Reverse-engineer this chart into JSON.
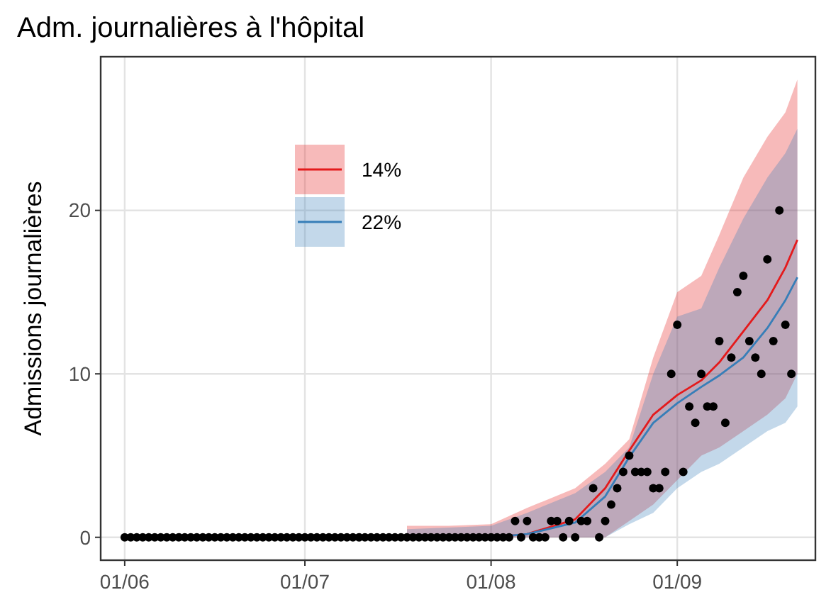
{
  "chart_data": {
    "type": "line",
    "title": "Adm. journalières à l'hôpital",
    "ylabel": "Admissions journalières",
    "xlim": [
      "--05-28",
      "--09-24"
    ],
    "ylim": [
      -1.4,
      29.4
    ],
    "yticks": [
      0,
      10,
      20
    ],
    "xticks": [
      {
        "value": "--06-01",
        "label": "01/06"
      },
      {
        "value": "--07-01",
        "label": "01/07"
      },
      {
        "value": "--08-01",
        "label": "01/08"
      },
      {
        "value": "--09-01",
        "label": "01/09"
      }
    ],
    "grid": true,
    "legend": "top left",
    "series": [
      {
        "name": "14%",
        "color": "#e41a1c",
        "x": [
          "--07-18",
          "--07-25",
          "--08-01",
          "--08-07",
          "--08-15",
          "--08-20",
          "--08-24",
          "--08-28",
          "--09-01",
          "--09-05",
          "--09-08",
          "--09-12",
          "--09-16",
          "--09-19",
          "--09-21"
        ],
        "values": [
          null,
          null,
          0,
          0.2,
          1.1,
          3,
          5.3,
          7.5,
          8.7,
          9.6,
          10.7,
          12.6,
          14.5,
          16.5,
          18.2
        ],
        "upper": [
          0.7,
          0.7,
          0.8,
          1.8,
          3,
          4.5,
          6,
          11,
          15,
          16,
          18.5,
          22,
          24.5,
          26,
          28
        ],
        "lower": [
          0,
          0,
          0,
          0,
          0,
          0,
          1,
          2,
          3.5,
          5,
          5.5,
          6.5,
          7.5,
          8.5,
          10
        ]
      },
      {
        "name": "22%",
        "color": "#377eb8",
        "x": [
          "--07-18",
          "--07-25",
          "--08-01",
          "--08-07",
          "--08-15",
          "--08-20",
          "--08-24",
          "--08-28",
          "--09-01",
          "--09-05",
          "--09-08",
          "--09-12",
          "--09-16",
          "--09-19",
          "--09-21"
        ],
        "values": [
          null,
          null,
          0,
          0.2,
          0.9,
          2.5,
          4.9,
          7,
          8.2,
          9.2,
          9.9,
          11,
          12.8,
          14.5,
          15.9
        ],
        "upper": [
          0.5,
          0.6,
          0.7,
          1.5,
          2.7,
          4,
          5.5,
          10,
          13.5,
          14,
          16.5,
          19.5,
          22,
          23.5,
          25
        ],
        "lower": [
          0,
          0,
          0,
          0,
          0,
          0,
          0.8,
          1.5,
          3,
          4,
          4.5,
          5.5,
          6.5,
          7,
          8
        ]
      },
      {
        "type": "scatter",
        "color": "#000000",
        "marker": "circle",
        "x": [
          "--06-01",
          "--06-02",
          "--06-03",
          "--06-04",
          "--06-05",
          "--06-06",
          "--06-07",
          "--06-08",
          "--06-09",
          "--06-10",
          "--06-11",
          "--06-12",
          "--06-13",
          "--06-14",
          "--06-15",
          "--06-16",
          "--06-17",
          "--06-18",
          "--06-19",
          "--06-20",
          "--06-21",
          "--06-22",
          "--06-23",
          "--06-24",
          "--06-25",
          "--06-26",
          "--06-27",
          "--06-28",
          "--06-29",
          "--06-30",
          "--07-01",
          "--07-02",
          "--07-03",
          "--07-04",
          "--07-05",
          "--07-06",
          "--07-07",
          "--07-08",
          "--07-09",
          "--07-10",
          "--07-11",
          "--07-12",
          "--07-13",
          "--07-14",
          "--07-15",
          "--07-16",
          "--07-17",
          "--07-18",
          "--07-19",
          "--07-20",
          "--07-21",
          "--07-22",
          "--07-23",
          "--07-24",
          "--07-25",
          "--07-26",
          "--07-27",
          "--07-28",
          "--07-29",
          "--07-30",
          "--07-31",
          "--08-01",
          "--08-02",
          "--08-03",
          "--08-04",
          "--08-05",
          "--08-06",
          "--08-07",
          "--08-08",
          "--08-09",
          "--08-10",
          "--08-11",
          "--08-12",
          "--08-13",
          "--08-14",
          "--08-15",
          "--08-16",
          "--08-17",
          "--08-18",
          "--08-19",
          "--08-20",
          "--08-21",
          "--08-22",
          "--08-23",
          "--08-24",
          "--08-25",
          "--08-26",
          "--08-27",
          "--08-28",
          "--08-29",
          "--08-30",
          "--08-31",
          "--09-01",
          "--09-02",
          "--09-03",
          "--09-04",
          "--09-05",
          "--09-06",
          "--09-07",
          "--09-08",
          "--09-09",
          "--09-10",
          "--09-11",
          "--09-12",
          "--09-13",
          "--09-14",
          "--09-15",
          "--09-16",
          "--09-17",
          "--09-18",
          "--09-19",
          "--09-20"
        ],
        "values": [
          0,
          0,
          0,
          0,
          0,
          0,
          0,
          0,
          0,
          0,
          0,
          0,
          0,
          0,
          0,
          0,
          0,
          0,
          0,
          0,
          0,
          0,
          0,
          0,
          0,
          0,
          0,
          0,
          0,
          0,
          0,
          0,
          0,
          0,
          0,
          0,
          0,
          0,
          0,
          0,
          0,
          0,
          0,
          0,
          0,
          0,
          0,
          0,
          0,
          0,
          0,
          0,
          0,
          0,
          0,
          0,
          0,
          0,
          0,
          0,
          0,
          0,
          0,
          0,
          0,
          1,
          0,
          1,
          0,
          0,
          0,
          1,
          1,
          0,
          1,
          0,
          1,
          1,
          3,
          0,
          1,
          2,
          3,
          4,
          5,
          4,
          4,
          4,
          3,
          3,
          4,
          10,
          13,
          4,
          8,
          7,
          10,
          8,
          8,
          12,
          7,
          11,
          15,
          16,
          12,
          11,
          10,
          17,
          12,
          20,
          13,
          10
        ]
      }
    ]
  }
}
